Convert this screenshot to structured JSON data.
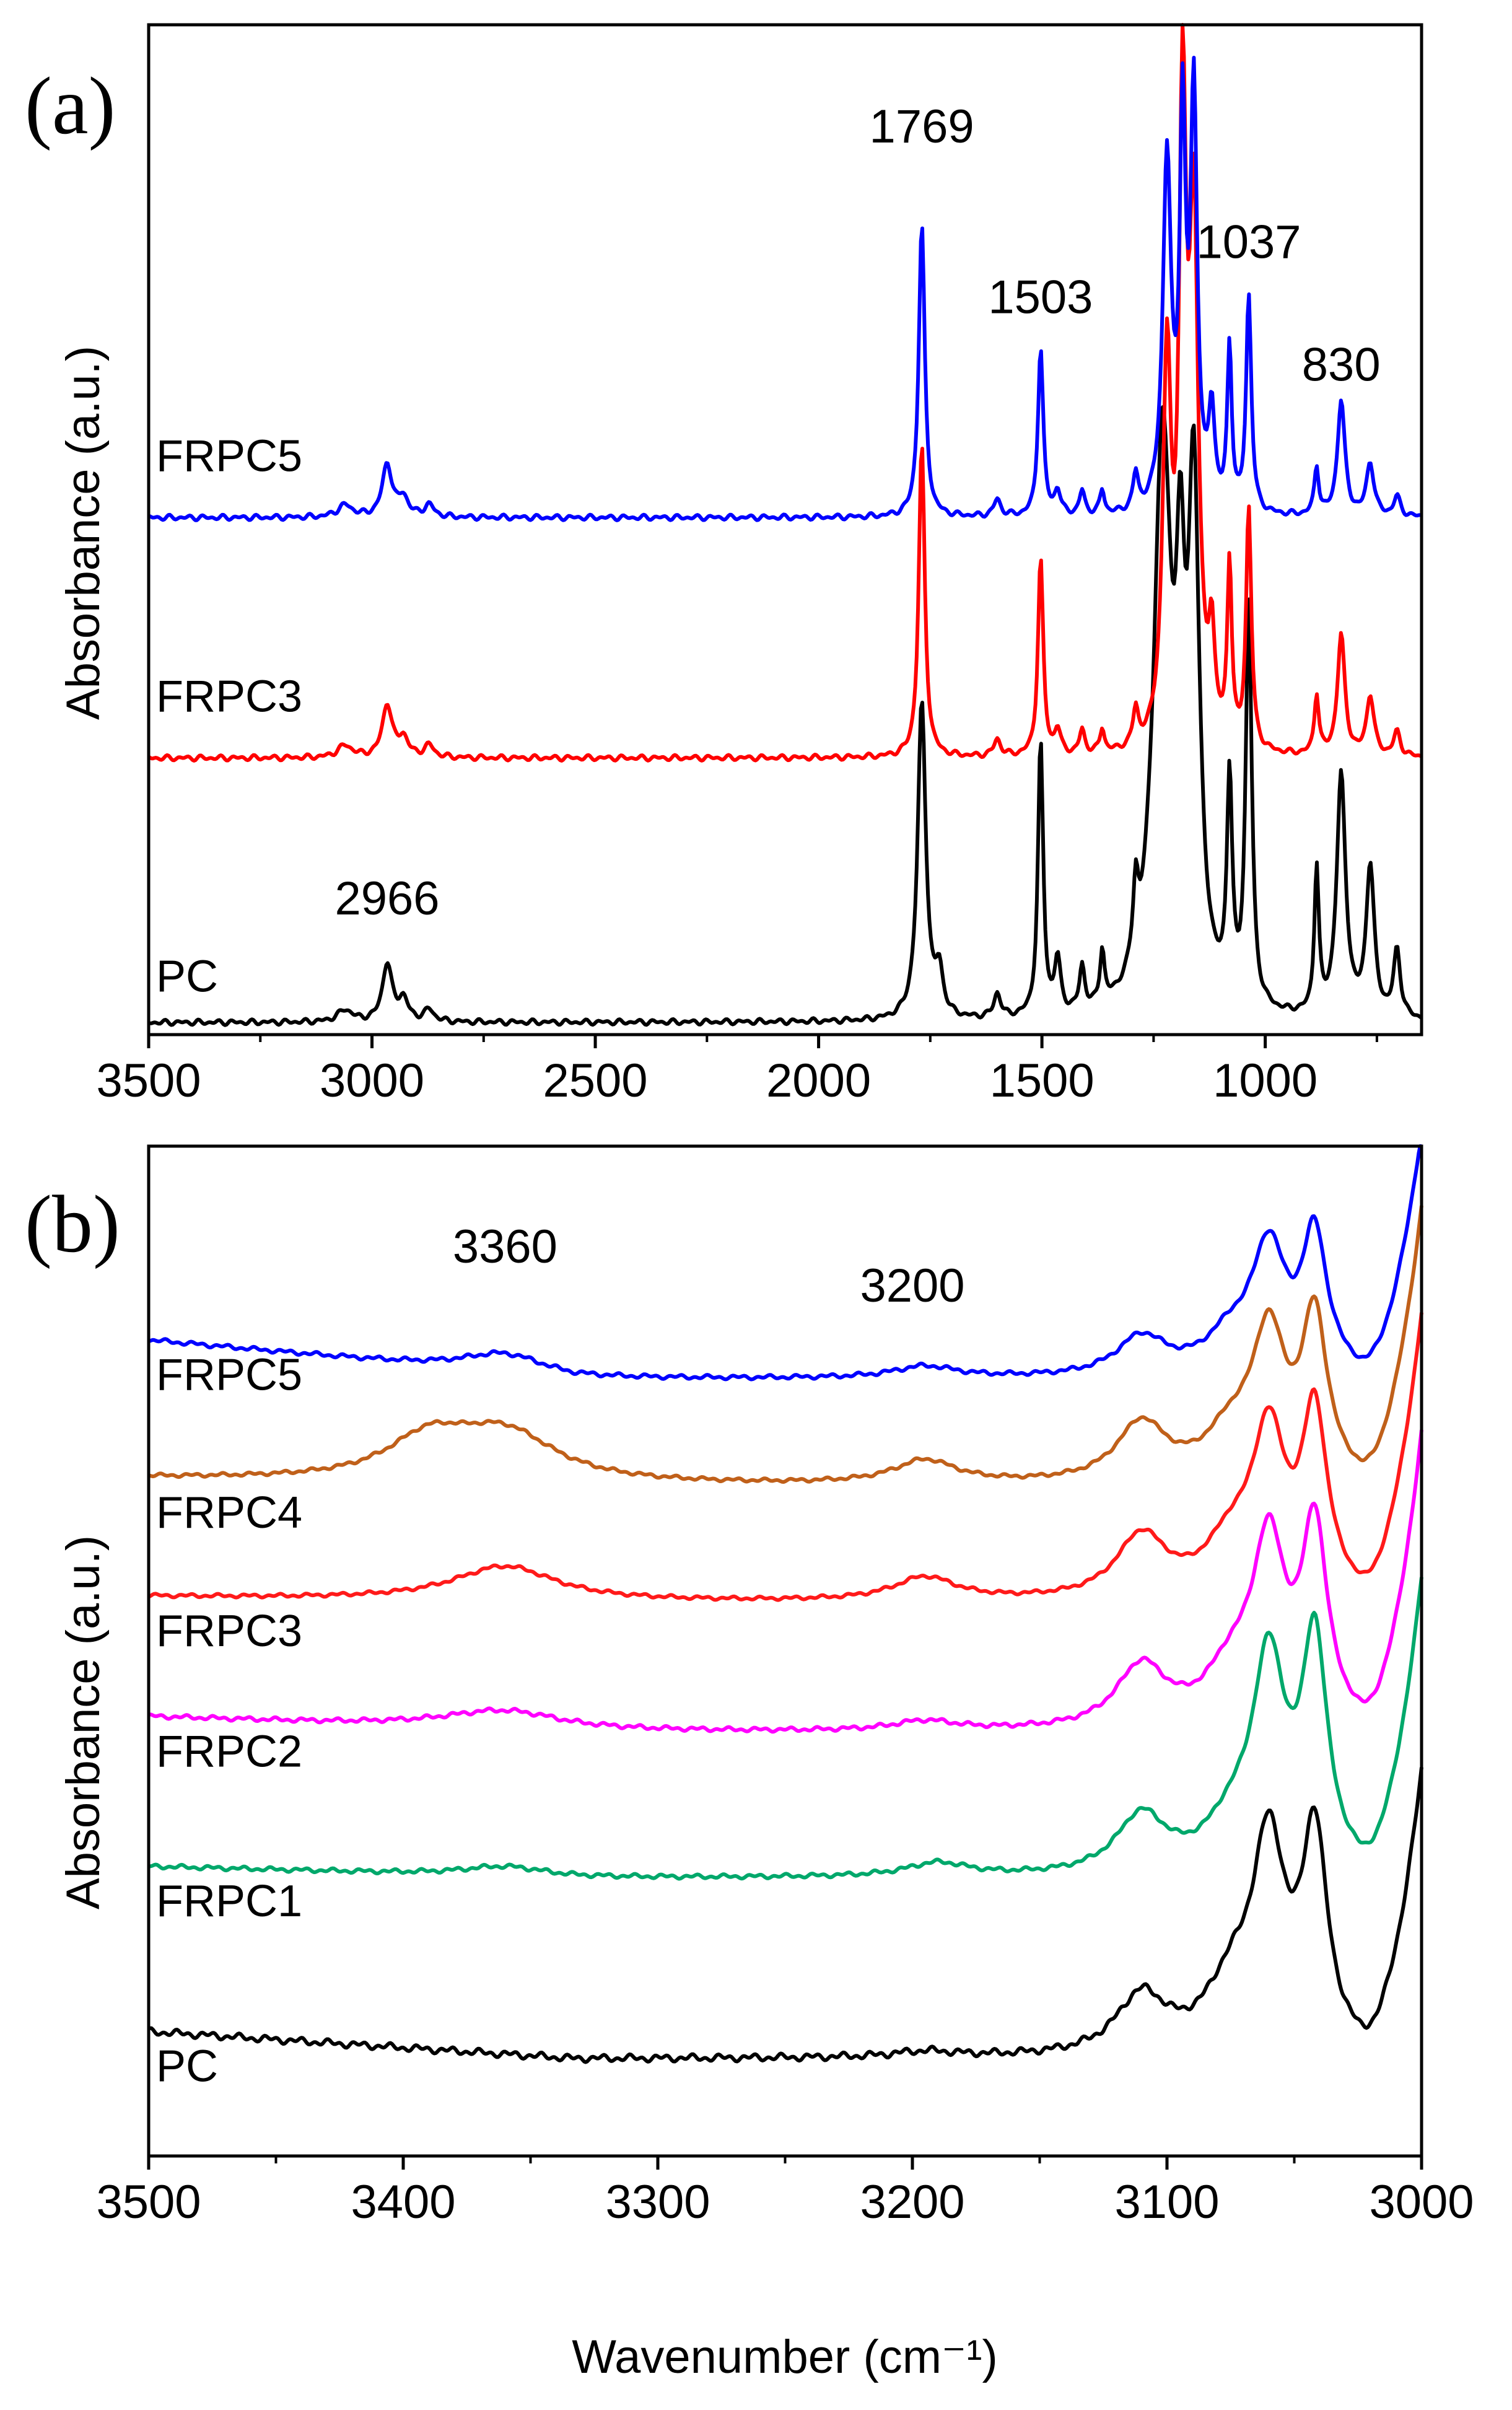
{
  "figure": {
    "xlabel": "Wavenumber (cm⁻¹)"
  },
  "chart_data": [
    {
      "type": "line",
      "panel": "(a)",
      "title": "",
      "xlabel": "",
      "ylabel": "Absorbance (a.u.)",
      "xlim": [
        3500,
        650
      ],
      "xticks": [
        3500,
        3000,
        2500,
        2000,
        1500,
        1000
      ],
      "y_units": "arbitrary, stacked offsets",
      "ylim": [
        -0.05,
        4.15
      ],
      "peak_labels": [
        {
          "text": "1769",
          "x": 1769,
          "y": 3.66
        },
        {
          "text": "1503",
          "x": 1503,
          "y": 2.95
        },
        {
          "text": "1037",
          "x": 1037,
          "y": 3.18
        },
        {
          "text": "830",
          "x": 830,
          "y": 2.67
        },
        {
          "text": "2966",
          "x": 2966,
          "y": 0.45
        }
      ],
      "series": [
        {
          "name": "PC",
          "color": "#000000",
          "baseline": 0,
          "peaks": [
            {
              "x": 3060,
              "h": 0.05,
              "w": 20
            },
            {
              "x": 2966,
              "h": 0.24,
              "w": 13
            },
            {
              "x": 2930,
              "h": 0.09,
              "w": 13
            },
            {
              "x": 2872,
              "h": 0.05,
              "w": 13
            },
            {
              "x": 1769,
              "h": 1.32,
              "w": 11
            },
            {
              "x": 1730,
              "h": 0.18,
              "w": 10
            },
            {
              "x": 1600,
              "h": 0.1,
              "w": 9
            },
            {
              "x": 1503,
              "h": 1.14,
              "w": 7
            },
            {
              "x": 1465,
              "h": 0.22,
              "w": 8
            },
            {
              "x": 1410,
              "h": 0.18,
              "w": 7
            },
            {
              "x": 1365,
              "h": 0.22,
              "w": 6
            },
            {
              "x": 1290,
              "h": 0.3,
              "w": 7
            },
            {
              "x": 1230,
              "h": 2.35,
              "w": 24
            },
            {
              "x": 1190,
              "h": 1.25,
              "w": 12
            },
            {
              "x": 1160,
              "h": 2.05,
              "w": 15
            },
            {
              "x": 1080,
              "h": 0.9,
              "w": 7
            },
            {
              "x": 1037,
              "h": 1.67,
              "w": 8
            },
            {
              "x": 885,
              "h": 0.6,
              "w": 6
            },
            {
              "x": 830,
              "h": 1.0,
              "w": 12
            },
            {
              "x": 765,
              "h": 0.62,
              "w": 11
            },
            {
              "x": 705,
              "h": 0.28,
              "w": 9
            }
          ]
        },
        {
          "name": "FRPC3",
          "color": "#ff0000",
          "baseline": 1.1,
          "peaks": [
            {
              "x": 3060,
              "h": 0.05,
              "w": 20
            },
            {
              "x": 2966,
              "h": 0.22,
              "w": 13
            },
            {
              "x": 2930,
              "h": 0.08,
              "w": 13
            },
            {
              "x": 2872,
              "h": 0.05,
              "w": 13
            },
            {
              "x": 1769,
              "h": 1.3,
              "w": 8
            },
            {
              "x": 1600,
              "h": 0.07,
              "w": 9
            },
            {
              "x": 1503,
              "h": 0.82,
              "w": 7
            },
            {
              "x": 1465,
              "h": 0.1,
              "w": 8
            },
            {
              "x": 1410,
              "h": 0.1,
              "w": 7
            },
            {
              "x": 1365,
              "h": 0.1,
              "w": 6
            },
            {
              "x": 1290,
              "h": 0.15,
              "w": 7
            },
            {
              "x": 1220,
              "h": 1.55,
              "w": 11
            },
            {
              "x": 1185,
              "h": 2.5,
              "w": 10
            },
            {
              "x": 1160,
              "h": 2.1,
              "w": 12
            },
            {
              "x": 1120,
              "h": 0.4,
              "w": 8
            },
            {
              "x": 1080,
              "h": 0.75,
              "w": 6
            },
            {
              "x": 1037,
              "h": 1.0,
              "w": 7
            },
            {
              "x": 885,
              "h": 0.25,
              "w": 6
            },
            {
              "x": 830,
              "h": 0.5,
              "w": 10
            },
            {
              "x": 765,
              "h": 0.25,
              "w": 10
            },
            {
              "x": 705,
              "h": 0.1,
              "w": 9
            }
          ]
        },
        {
          "name": "FRPC5",
          "color": "#0000ff",
          "baseline": 2.1,
          "peaks": [
            {
              "x": 3060,
              "h": 0.05,
              "w": 20
            },
            {
              "x": 2966,
              "h": 0.22,
              "w": 13
            },
            {
              "x": 2930,
              "h": 0.08,
              "w": 13
            },
            {
              "x": 2872,
              "h": 0.05,
              "w": 13
            },
            {
              "x": 1769,
              "h": 1.22,
              "w": 8
            },
            {
              "x": 1600,
              "h": 0.07,
              "w": 9
            },
            {
              "x": 1503,
              "h": 0.7,
              "w": 7
            },
            {
              "x": 1465,
              "h": 0.1,
              "w": 8
            },
            {
              "x": 1410,
              "h": 0.1,
              "w": 7
            },
            {
              "x": 1365,
              "h": 0.1,
              "w": 6
            },
            {
              "x": 1290,
              "h": 0.15,
              "w": 7
            },
            {
              "x": 1220,
              "h": 1.45,
              "w": 11
            },
            {
              "x": 1185,
              "h": 1.55,
              "w": 8
            },
            {
              "x": 1160,
              "h": 1.7,
              "w": 9
            },
            {
              "x": 1120,
              "h": 0.4,
              "w": 8
            },
            {
              "x": 1080,
              "h": 0.68,
              "w": 6
            },
            {
              "x": 1037,
              "h": 0.9,
              "w": 7
            },
            {
              "x": 885,
              "h": 0.2,
              "w": 6
            },
            {
              "x": 830,
              "h": 0.48,
              "w": 10
            },
            {
              "x": 765,
              "h": 0.22,
              "w": 10
            },
            {
              "x": 705,
              "h": 0.08,
              "w": 9
            }
          ]
        }
      ]
    },
    {
      "type": "line",
      "panel": "(b)",
      "title": "",
      "xlabel": "Wavenumber (cm⁻¹)",
      "ylabel": "Absorbance (a.u.)",
      "xlim": [
        3500,
        3000
      ],
      "xticks": [
        3500,
        3400,
        3300,
        3200,
        3100,
        3000
      ],
      "y_units": "arbitrary, stacked offsets",
      "ylim": [
        -0.2,
        5.0
      ],
      "peak_labels": [
        {
          "text": "3360",
          "x": 3360,
          "y": 4.4
        },
        {
          "text": "3200",
          "x": 3200,
          "y": 4.2
        }
      ],
      "series": [
        {
          "name": "PC",
          "color": "#000000",
          "baseline": 0.3,
          "start": 0.14,
          "noise": 0.02,
          "peaks": [
            {
              "x": 3195,
              "h": 0.03,
              "w": 15
            },
            {
              "x": 3110,
              "h": 0.3,
              "w": 12
            },
            {
              "x": 3075,
              "h": 0.3,
              "w": 12
            },
            {
              "x": 3060,
              "h": 1.03,
              "w": 8
            },
            {
              "x": 3042,
              "h": 1.09,
              "w": 6
            }
          ],
          "tail": 1.44
        },
        {
          "name": "FRPC1",
          "color": "#00a86b",
          "baseline": 1.23,
          "start": 0.06,
          "noise": 0.012,
          "peaks": [
            {
              "x": 3360,
              "h": 0.05,
              "w": 20
            },
            {
              "x": 3190,
              "h": 0.07,
              "w": 15
            },
            {
              "x": 3110,
              "h": 0.3,
              "w": 12
            },
            {
              "x": 3075,
              "h": 0.2,
              "w": 12
            },
            {
              "x": 3060,
              "h": 1.05,
              "w": 8
            },
            {
              "x": 3042,
              "h": 1.16,
              "w": 6
            }
          ],
          "tail": 1.5
        },
        {
          "name": "FRPC2",
          "color": "#ff00ff",
          "baseline": 1.98,
          "start": 0.08,
          "noise": 0.012,
          "peaks": [
            {
              "x": 3360,
              "h": 0.1,
              "w": 30
            },
            {
              "x": 3195,
              "h": 0.05,
              "w": 15
            },
            {
              "x": 3110,
              "h": 0.32,
              "w": 12
            },
            {
              "x": 3075,
              "h": 0.25,
              "w": 12
            },
            {
              "x": 3060,
              "h": 0.9,
              "w": 8
            },
            {
              "x": 3042,
              "h": 1.0,
              "w": 6
            }
          ],
          "tail": 1.5
        },
        {
          "name": "FRPC3",
          "color": "#ff1a1a",
          "baseline": 2.65,
          "start": 0.03,
          "noise": 0.01,
          "peaks": [
            {
              "x": 3360,
              "h": 0.18,
              "w": 25
            },
            {
              "x": 3195,
              "h": 0.12,
              "w": 15
            },
            {
              "x": 3110,
              "h": 0.32,
              "w": 12
            },
            {
              "x": 3075,
              "h": 0.25,
              "w": 12
            },
            {
              "x": 3060,
              "h": 0.8,
              "w": 8
            },
            {
              "x": 3042,
              "h": 0.92,
              "w": 6
            }
          ],
          "tail": 1.45
        },
        {
          "name": "FRPC4",
          "color": "#c0601a",
          "baseline": 3.25,
          "start": 0.04,
          "noise": 0.01,
          "peaks": [
            {
              "x": 3390,
              "h": 0.2,
              "w": 20
            },
            {
              "x": 3360,
              "h": 0.25,
              "w": 25
            },
            {
              "x": 3195,
              "h": 0.12,
              "w": 15
            },
            {
              "x": 3110,
              "h": 0.3,
              "w": 12
            },
            {
              "x": 3075,
              "h": 0.22,
              "w": 12
            },
            {
              "x": 3060,
              "h": 0.72,
              "w": 8
            },
            {
              "x": 3042,
              "h": 0.82,
              "w": 6
            }
          ],
          "tail": 1.4
        },
        {
          "name": "FRPC5",
          "color": "#0000ff",
          "baseline": 3.8,
          "start": 0.2,
          "noise": 0.012,
          "peaks": [
            {
              "x": 3360,
              "h": 0.1,
              "w": 20
            },
            {
              "x": 3195,
              "h": 0.06,
              "w": 15
            },
            {
              "x": 3110,
              "h": 0.2,
              "w": 12
            },
            {
              "x": 3075,
              "h": 0.18,
              "w": 12
            },
            {
              "x": 3060,
              "h": 0.62,
              "w": 8
            },
            {
              "x": 3042,
              "h": 0.7,
              "w": 6
            }
          ],
          "tail": 1.25
        }
      ]
    }
  ]
}
